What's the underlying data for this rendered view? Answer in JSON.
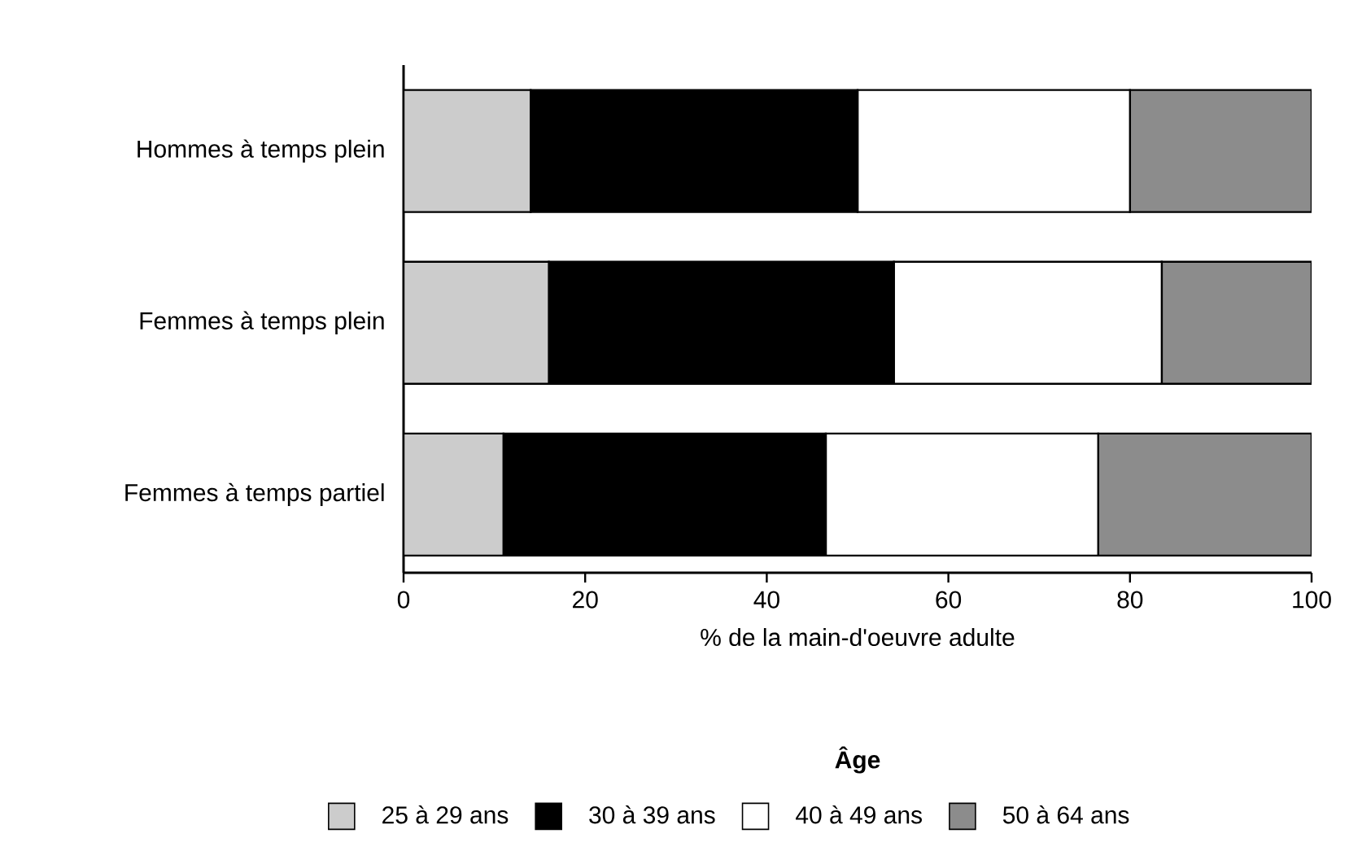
{
  "chart_data": {
    "type": "bar",
    "orientation": "horizontal",
    "stacked": true,
    "categories": [
      "Hommes à temps plein",
      "Femmes à temps plein",
      "Femmes à temps partiel"
    ],
    "series": [
      {
        "name": "25 à 29 ans",
        "color": "#cccccc",
        "values": [
          14,
          16,
          11
        ]
      },
      {
        "name": "30 à 39 ans",
        "color": "#000000",
        "values": [
          36,
          38,
          35.5
        ]
      },
      {
        "name": "40 à 49 ans",
        "color": "#ffffff",
        "values": [
          30,
          29.5,
          30
        ]
      },
      {
        "name": "50 à 64 ans",
        "color": "#8c8c8c",
        "values": [
          20,
          16.5,
          23.5
        ]
      }
    ],
    "xlim": [
      0,
      100
    ],
    "xticks": [
      0,
      20,
      40,
      60,
      80,
      100
    ],
    "xlabel": "% de la main-d'oeuvre adulte",
    "legend_title": "Âge",
    "legend": "bottom",
    "grid": false
  }
}
